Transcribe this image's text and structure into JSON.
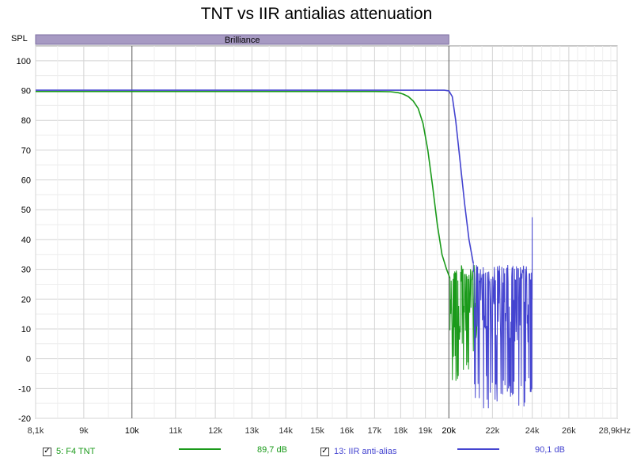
{
  "title": "TNT vs IIR antialias attenuation",
  "chart_data": {
    "type": "line",
    "title": "TNT vs IIR antialias attenuation",
    "ylabel": "SPL",
    "xunit": "kHz",
    "x_scale": "log",
    "xlim": [
      8100,
      28900
    ],
    "ylim": [
      -20,
      105
    ],
    "y_ticks": [
      -20,
      -10,
      0,
      10,
      20,
      30,
      40,
      50,
      60,
      70,
      80,
      90,
      100
    ],
    "x_ticks": [
      {
        "value": 8100,
        "label": "8,1k"
      },
      {
        "value": 9000,
        "label": "9k"
      },
      {
        "value": 10000,
        "label": "10k"
      },
      {
        "value": 11000,
        "label": "11k"
      },
      {
        "value": 12000,
        "label": "12k"
      },
      {
        "value": 13000,
        "label": "13k"
      },
      {
        "value": 14000,
        "label": "14k"
      },
      {
        "value": 15000,
        "label": "15k"
      },
      {
        "value": 16000,
        "label": "16k"
      },
      {
        "value": 17000,
        "label": "17k"
      },
      {
        "value": 18000,
        "label": "18k"
      },
      {
        "value": 19000,
        "label": "19k"
      },
      {
        "value": 20000,
        "label": "20k"
      },
      {
        "value": 22000,
        "label": "22k"
      },
      {
        "value": 24000,
        "label": "24k"
      },
      {
        "value": 26000,
        "label": "26k"
      },
      {
        "value": 28900,
        "label": "28,9kHz"
      }
    ],
    "bold_x_ticks": [
      10000,
      20000
    ],
    "band": {
      "label": "Brilliance",
      "from": 8100,
      "to": 20000,
      "color": "#a79ac3"
    },
    "grid": true,
    "series": [
      {
        "name": "5: F4 TNT",
        "color": "#1a9a1a",
        "passband_level": 89.7,
        "x": [
          8100,
          10000,
          12000,
          14000,
          16000,
          17000,
          17600,
          17900,
          18100,
          18300,
          18500,
          18700,
          18900,
          19100,
          19300,
          19500,
          19700,
          19900,
          20050
        ],
        "y": [
          89.7,
          89.7,
          89.7,
          89.7,
          89.7,
          89.7,
          89.6,
          89.3,
          88.8,
          88.0,
          86.5,
          84.0,
          79.0,
          70.0,
          58.0,
          45.0,
          35.0,
          30.0,
          27.0
        ],
        "noise": {
          "from": 20050,
          "to": 21300,
          "min": -9.5,
          "max": 31.5
        }
      },
      {
        "name": "13: IIR anti-alias",
        "color": "#4444d0",
        "passband_level": 90.1,
        "x": [
          8100,
          12000,
          16000,
          19000,
          19800,
          20000,
          20150,
          20300,
          20500,
          20700,
          20900,
          21100
        ],
        "y": [
          90.1,
          90.1,
          90.1,
          90.1,
          90.1,
          89.9,
          88.0,
          80.0,
          66.0,
          52.0,
          40.0,
          32.0
        ],
        "noise": {
          "from": 21100,
          "to": 24000,
          "min": -17.0,
          "max": 31.5
        },
        "spike": {
          "x": 24000,
          "y": 47.5
        }
      }
    ]
  },
  "legend": [
    {
      "checkbox": "✓",
      "label": "5: F4 TNT",
      "value": "89,7 dB",
      "color": "#1a9a1a"
    },
    {
      "checkbox": "✓",
      "label": "13: IIR anti-alias",
      "value": "90,1 dB",
      "color": "#4444d0"
    }
  ]
}
